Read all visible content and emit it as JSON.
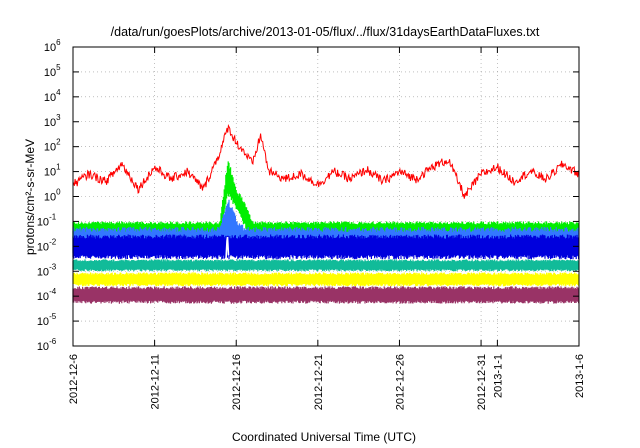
{
  "chart_data": {
    "type": "line",
    "title": "/data/run/goesPlots/archive/2013-01-05/flux/../flux/31daysEarthDataFluxes.txt",
    "xlabel": "Coordinated Universal Time (UTC)",
    "ylabel": "protons/cm²-s-sr-MeV",
    "x_range": [
      "2012-12-06",
      "2013-01-06"
    ],
    "y_range": [
      1e-06,
      1000000.0
    ],
    "y_scale": "log",
    "grid": true,
    "legend": "none",
    "x_ticks": [
      {
        "date": "2012-12-06",
        "label": "2012-12-6"
      },
      {
        "date": "2012-12-11",
        "label": "2012-12-11"
      },
      {
        "date": "2012-12-16",
        "label": "2012-12-16"
      },
      {
        "date": "2012-12-21",
        "label": "2012-12-21"
      },
      {
        "date": "2012-12-26",
        "label": "2012-12-26"
      },
      {
        "date": "2012-12-31",
        "label": "2012-12-31"
      },
      {
        "date": "2013-01-01",
        "label": "2013-1-1"
      },
      {
        "date": "2013-01-06",
        "label": "2013-1-6"
      }
    ],
    "y_ticks": [
      {
        "value": 1e-06,
        "base": "10",
        "exp": "-6"
      },
      {
        "value": 1e-05,
        "base": "10",
        "exp": "-5"
      },
      {
        "value": 0.0001,
        "base": "10",
        "exp": "-4"
      },
      {
        "value": 0.001,
        "base": "10",
        "exp": "-3"
      },
      {
        "value": 0.01,
        "base": "10",
        "exp": "-2"
      },
      {
        "value": 0.1,
        "base": "10",
        "exp": "-1"
      },
      {
        "value": 1,
        "base": "10",
        "exp": "0"
      },
      {
        "value": 10,
        "base": "10",
        "exp": "1"
      },
      {
        "value": 100,
        "base": "10",
        "exp": "2"
      },
      {
        "value": 1000,
        "base": "10",
        "exp": "3"
      },
      {
        "value": 10000,
        "base": "10",
        "exp": "4"
      },
      {
        "value": 100000,
        "base": "10",
        "exp": "5"
      },
      {
        "value": 1000000,
        "base": "10",
        "exp": "6"
      }
    ],
    "series": [
      {
        "color": "#ff0000",
        "kind": "line",
        "x": [
          "2012-12-06",
          "2012-12-07",
          "2012-12-08",
          "2012-12-09",
          "2012-12-10",
          "2012-12-11",
          "2012-12-12",
          "2012-12-13",
          "2012-12-14",
          "2012-12-15",
          "2012-12-15T12:00",
          "2012-12-16",
          "2012-12-16T12:00",
          "2012-12-17",
          "2012-12-17T12:00",
          "2012-12-18",
          "2012-12-19",
          "2012-12-20",
          "2012-12-21",
          "2012-12-22",
          "2012-12-23",
          "2012-12-24",
          "2012-12-25",
          "2012-12-26",
          "2012-12-27",
          "2012-12-28",
          "2012-12-29",
          "2012-12-30",
          "2012-12-31",
          "2013-01-01",
          "2013-01-02",
          "2013-01-03",
          "2013-01-04",
          "2013-01-05",
          "2013-01-06"
        ],
        "y": [
          3,
          8,
          4,
          20,
          2,
          15,
          5,
          10,
          2,
          60,
          600,
          150,
          60,
          20,
          300,
          10,
          5,
          8,
          3,
          10,
          5,
          12,
          4,
          10,
          5,
          15,
          30,
          1,
          8,
          15,
          4,
          10,
          5,
          20,
          8
        ]
      },
      {
        "color": "#00ee00",
        "kind": "band",
        "x": [
          "2012-12-06",
          "2012-12-15",
          "2012-12-15T12:00",
          "2012-12-16",
          "2012-12-16T12:00",
          "2012-12-17",
          "2012-12-18",
          "2013-01-06"
        ],
        "low": [
          0.02,
          0.02,
          1,
          0.3,
          0.06,
          0.02,
          0.02,
          0.02
        ],
        "high": [
          0.1,
          0.1,
          40,
          2,
          0.8,
          0.1,
          0.1,
          0.1
        ]
      },
      {
        "color": "#3377ff",
        "kind": "band",
        "x": [
          "2012-12-06",
          "2012-12-15",
          "2012-12-15T12:00",
          "2012-12-16",
          "2012-12-16T12:00",
          "2012-12-17",
          "2013-01-06"
        ],
        "low": [
          0.004,
          0.004,
          0.01,
          0.006,
          0.004,
          0.004,
          0.004
        ],
        "high": [
          0.06,
          0.06,
          1,
          0.15,
          0.06,
          0.06,
          0.06
        ]
      },
      {
        "color": "#0000dd",
        "kind": "band",
        "x": [
          "2012-12-06",
          "2013-01-06"
        ],
        "low": [
          0.003,
          0.003
        ],
        "high": [
          0.03,
          0.03
        ]
      },
      {
        "color": "#11bb99",
        "kind": "band",
        "x": [
          "2012-12-06",
          "2013-01-06"
        ],
        "low": [
          0.001,
          0.001
        ],
        "high": [
          0.003,
          0.003
        ]
      },
      {
        "color": "#ffff00",
        "kind": "band",
        "x": [
          "2012-12-06",
          "2013-01-06"
        ],
        "low": [
          0.00025,
          0.00025
        ],
        "high": [
          0.0009,
          0.0009
        ]
      },
      {
        "color": "#993366",
        "kind": "band",
        "x": [
          "2012-12-06",
          "2013-01-06"
        ],
        "low": [
          5e-05,
          5e-05
        ],
        "high": [
          0.00025,
          0.00025
        ]
      },
      {
        "color": "#ffffff",
        "kind": "line",
        "x": [
          "2012-12-15T09:00",
          "2012-12-15T11:00",
          "2012-12-15T13:00"
        ],
        "y": [
          0.003,
          0.03,
          0.003
        ]
      }
    ]
  }
}
